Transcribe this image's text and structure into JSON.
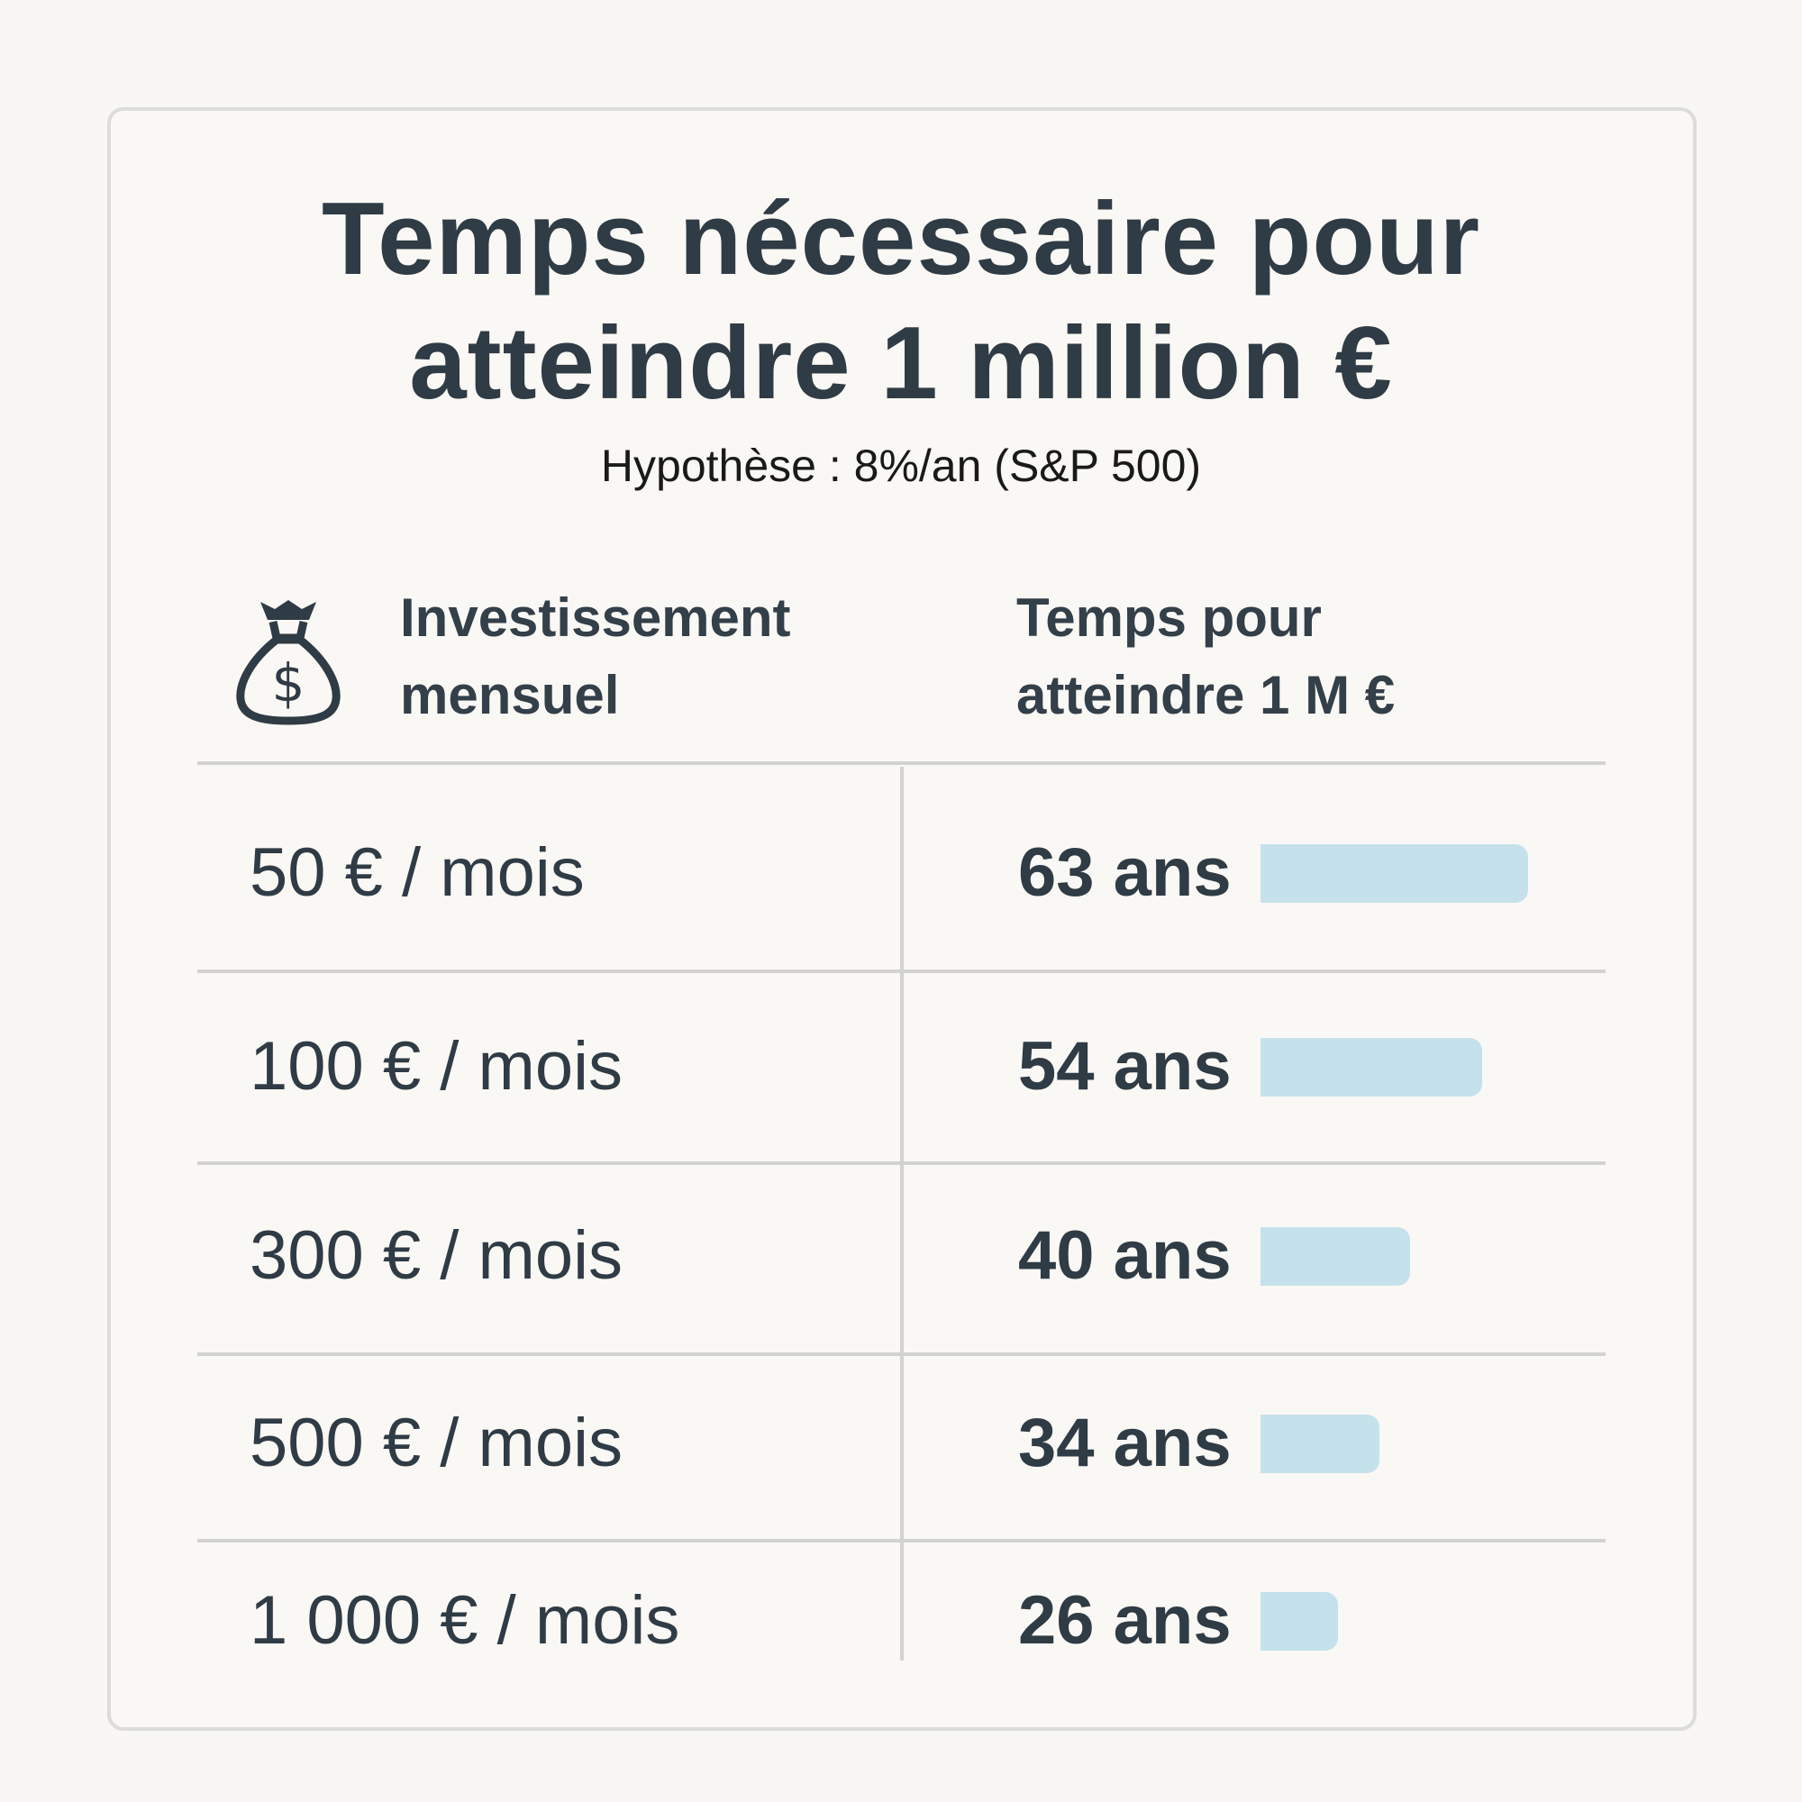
{
  "title_line1": "Temps nécessaire pour",
  "title_line2": "atteindre 1 million €",
  "subtitle": "Hypothèse : 8%/an (S&P 500)",
  "header": {
    "icon": "money-bag-dollar-icon",
    "col1_line1": "Investissement",
    "col1_line2": "mensuel",
    "col2_line1": "Temps pour",
    "col2_line2": "atteindre 1 M €"
  },
  "colors": {
    "bar": "#c5e1ec",
    "text": "#2f3b45",
    "background": "#f9f7f3"
  },
  "chart_data": {
    "type": "table",
    "categories": [
      "50 € / mois",
      "100 € / mois",
      "300 € / mois",
      "500 € / mois",
      "1 000 € / mois"
    ],
    "values": [
      63,
      54,
      40,
      34,
      26
    ],
    "labels": [
      "63 ans",
      "54 ans",
      "40 ans",
      "34 ans",
      "26 ans"
    ],
    "unit": "ans"
  }
}
